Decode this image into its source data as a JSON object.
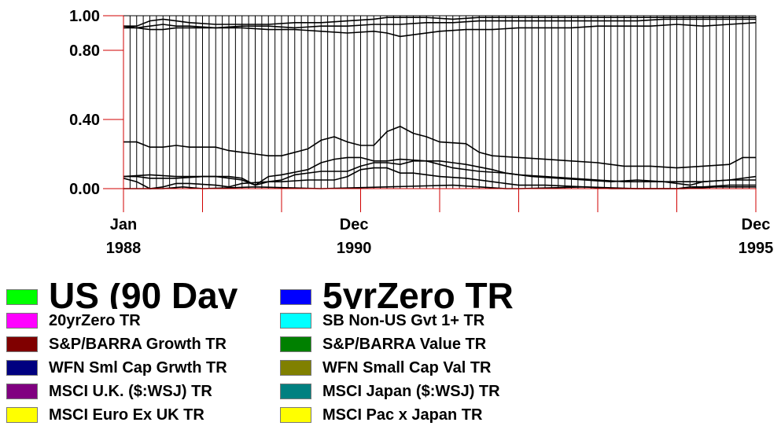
{
  "chart_data": {
    "type": "area",
    "stacked": true,
    "x": [
      "Jan 1988",
      "Dec 1990",
      "Dec 1995"
    ],
    "x_tick_labels": [
      {
        "line1": "Jan",
        "line2": "1988"
      },
      {
        "line1": "Dec",
        "line2": "1990"
      },
      {
        "line1": "Dec",
        "line2": "1995"
      }
    ],
    "y_tick_labels": [
      "1.00",
      "0.80",
      "0.40",
      "0.00"
    ],
    "y_ticks": [
      1.0,
      0.8,
      0.4,
      0.0
    ],
    "ylim": [
      0,
      1
    ],
    "xlim_months": 96,
    "vertical_gridlines": "monthly",
    "boundaries": [
      {
        "name": "b1",
        "points": [
          [
            0,
            0.0
          ],
          [
            6,
            0.0
          ],
          [
            9,
            0.01
          ],
          [
            12,
            0.0
          ],
          [
            20,
            0.01
          ],
          [
            30,
            0.0
          ],
          [
            40,
            0.01
          ],
          [
            50,
            0.02
          ],
          [
            58,
            0.0
          ],
          [
            60,
            0.0
          ],
          [
            70,
            0.01
          ],
          [
            78,
            0.0
          ],
          [
            85,
            0.0
          ],
          [
            90,
            0.01
          ],
          [
            96,
            0.01
          ]
        ]
      },
      {
        "name": "b2",
        "points": [
          [
            0,
            0.06
          ],
          [
            2,
            0.04
          ],
          [
            4,
            0.0
          ],
          [
            6,
            0.01
          ],
          [
            8,
            0.03
          ],
          [
            10,
            0.03
          ],
          [
            14,
            0.02
          ],
          [
            16,
            0.01
          ],
          [
            18,
            0.03
          ],
          [
            22,
            0.04
          ],
          [
            24,
            0.04
          ],
          [
            28,
            0.05
          ],
          [
            32,
            0.05
          ],
          [
            34,
            0.07
          ],
          [
            36,
            0.11
          ],
          [
            38,
            0.12
          ],
          [
            40,
            0.12
          ],
          [
            42,
            0.09
          ],
          [
            44,
            0.09
          ],
          [
            48,
            0.07
          ],
          [
            52,
            0.06
          ],
          [
            56,
            0.04
          ],
          [
            58,
            0.03
          ],
          [
            60,
            0.02
          ],
          [
            64,
            0.02
          ],
          [
            70,
            0.01
          ],
          [
            74,
            0.0
          ],
          [
            80,
            0.0
          ],
          [
            84,
            0.0
          ],
          [
            86,
            0.01
          ],
          [
            88,
            0.01
          ],
          [
            92,
            0.02
          ],
          [
            96,
            0.02
          ]
        ]
      },
      {
        "name": "b3",
        "points": [
          [
            0,
            0.07
          ],
          [
            2,
            0.07
          ],
          [
            4,
            0.06
          ],
          [
            8,
            0.06
          ],
          [
            12,
            0.07
          ],
          [
            14,
            0.07
          ],
          [
            18,
            0.05
          ],
          [
            20,
            0.02
          ],
          [
            22,
            0.04
          ],
          [
            24,
            0.05
          ],
          [
            26,
            0.08
          ],
          [
            30,
            0.1
          ],
          [
            34,
            0.1
          ],
          [
            36,
            0.13
          ],
          [
            38,
            0.15
          ],
          [
            40,
            0.15
          ],
          [
            42,
            0.14
          ],
          [
            44,
            0.16
          ],
          [
            48,
            0.16
          ],
          [
            50,
            0.15
          ],
          [
            52,
            0.14
          ],
          [
            56,
            0.11
          ],
          [
            58,
            0.09
          ],
          [
            60,
            0.08
          ],
          [
            64,
            0.07
          ],
          [
            68,
            0.06
          ],
          [
            72,
            0.05
          ],
          [
            76,
            0.04
          ],
          [
            80,
            0.04
          ],
          [
            84,
            0.04
          ],
          [
            88,
            0.04
          ],
          [
            92,
            0.05
          ],
          [
            96,
            0.05
          ]
        ]
      },
      {
        "name": "b4",
        "points": [
          [
            0,
            0.07
          ],
          [
            4,
            0.08
          ],
          [
            8,
            0.07
          ],
          [
            12,
            0.07
          ],
          [
            16,
            0.07
          ],
          [
            18,
            0.06
          ],
          [
            20,
            0.02
          ],
          [
            22,
            0.07
          ],
          [
            24,
            0.08
          ],
          [
            28,
            0.11
          ],
          [
            30,
            0.15
          ],
          [
            32,
            0.17
          ],
          [
            34,
            0.18
          ],
          [
            36,
            0.18
          ],
          [
            38,
            0.16
          ],
          [
            40,
            0.16
          ],
          [
            42,
            0.17
          ],
          [
            46,
            0.16
          ],
          [
            50,
            0.12
          ],
          [
            54,
            0.1
          ],
          [
            58,
            0.09
          ],
          [
            62,
            0.07
          ],
          [
            66,
            0.06
          ],
          [
            70,
            0.05
          ],
          [
            74,
            0.04
          ],
          [
            78,
            0.05
          ],
          [
            82,
            0.04
          ],
          [
            86,
            0.02
          ],
          [
            88,
            0.04
          ],
          [
            92,
            0.05
          ],
          [
            96,
            0.07
          ]
        ]
      },
      {
        "name": "b5",
        "points": [
          [
            0,
            0.27
          ],
          [
            2,
            0.27
          ],
          [
            4,
            0.24
          ],
          [
            6,
            0.24
          ],
          [
            8,
            0.25
          ],
          [
            10,
            0.24
          ],
          [
            14,
            0.24
          ],
          [
            16,
            0.22
          ],
          [
            18,
            0.21
          ],
          [
            20,
            0.2
          ],
          [
            22,
            0.19
          ],
          [
            24,
            0.19
          ],
          [
            26,
            0.21
          ],
          [
            28,
            0.23
          ],
          [
            30,
            0.28
          ],
          [
            32,
            0.3
          ],
          [
            34,
            0.27
          ],
          [
            36,
            0.25
          ],
          [
            38,
            0.25
          ],
          [
            40,
            0.33
          ],
          [
            42,
            0.36
          ],
          [
            44,
            0.32
          ],
          [
            46,
            0.3
          ],
          [
            48,
            0.27
          ],
          [
            52,
            0.26
          ],
          [
            54,
            0.21
          ],
          [
            56,
            0.19
          ],
          [
            60,
            0.18
          ],
          [
            64,
            0.17
          ],
          [
            68,
            0.16
          ],
          [
            72,
            0.15
          ],
          [
            76,
            0.13
          ],
          [
            80,
            0.13
          ],
          [
            84,
            0.12
          ],
          [
            88,
            0.13
          ],
          [
            92,
            0.14
          ],
          [
            94,
            0.18
          ],
          [
            96,
            0.18
          ]
        ]
      },
      {
        "name": "b6",
        "points": [
          [
            0,
            0.93
          ],
          [
            2,
            0.93
          ],
          [
            4,
            0.92
          ],
          [
            6,
            0.92
          ],
          [
            8,
            0.93
          ],
          [
            10,
            0.93
          ],
          [
            14,
            0.93
          ],
          [
            18,
            0.93
          ],
          [
            22,
            0.92
          ],
          [
            26,
            0.92
          ],
          [
            30,
            0.91
          ],
          [
            34,
            0.9
          ],
          [
            38,
            0.91
          ],
          [
            40,
            0.9
          ],
          [
            42,
            0.88
          ],
          [
            44,
            0.89
          ],
          [
            48,
            0.91
          ],
          [
            52,
            0.92
          ],
          [
            56,
            0.92
          ],
          [
            60,
            0.93
          ],
          [
            64,
            0.93
          ],
          [
            68,
            0.93
          ],
          [
            72,
            0.94
          ],
          [
            76,
            0.94
          ],
          [
            80,
            0.94
          ],
          [
            84,
            0.95
          ],
          [
            88,
            0.94
          ],
          [
            92,
            0.95
          ],
          [
            96,
            0.96
          ]
        ]
      },
      {
        "name": "b7",
        "points": [
          [
            0,
            0.94
          ],
          [
            2,
            0.93
          ],
          [
            4,
            0.94
          ],
          [
            6,
            0.95
          ],
          [
            8,
            0.94
          ],
          [
            10,
            0.94
          ],
          [
            14,
            0.93
          ],
          [
            18,
            0.94
          ],
          [
            22,
            0.94
          ],
          [
            26,
            0.93
          ],
          [
            30,
            0.94
          ],
          [
            34,
            0.94
          ],
          [
            38,
            0.95
          ],
          [
            40,
            0.95
          ],
          [
            42,
            0.95
          ],
          [
            46,
            0.96
          ],
          [
            50,
            0.96
          ],
          [
            54,
            0.97
          ],
          [
            58,
            0.97
          ],
          [
            62,
            0.97
          ],
          [
            66,
            0.97
          ],
          [
            70,
            0.97
          ],
          [
            74,
            0.97
          ],
          [
            78,
            0.97
          ],
          [
            82,
            0.98
          ],
          [
            86,
            0.98
          ],
          [
            90,
            0.98
          ],
          [
            94,
            0.98
          ],
          [
            96,
            0.98
          ]
        ]
      },
      {
        "name": "b8",
        "points": [
          [
            0,
            0.94
          ],
          [
            2,
            0.94
          ],
          [
            4,
            0.97
          ],
          [
            6,
            0.98
          ],
          [
            8,
            0.97
          ],
          [
            10,
            0.96
          ],
          [
            14,
            0.95
          ],
          [
            18,
            0.95
          ],
          [
            22,
            0.95
          ],
          [
            26,
            0.96
          ],
          [
            30,
            0.96
          ],
          [
            34,
            0.97
          ],
          [
            38,
            0.98
          ],
          [
            40,
            0.99
          ],
          [
            42,
            0.99
          ],
          [
            46,
            0.99
          ],
          [
            50,
            0.98
          ],
          [
            54,
            0.99
          ],
          [
            58,
            0.99
          ],
          [
            62,
            0.99
          ],
          [
            66,
            0.99
          ],
          [
            70,
            0.99
          ],
          [
            74,
            0.99
          ],
          [
            78,
            0.99
          ],
          [
            82,
            0.99
          ],
          [
            86,
            0.99
          ],
          [
            90,
            0.99
          ],
          [
            94,
            0.99
          ],
          [
            96,
            0.99
          ]
        ]
      }
    ],
    "legend": [
      {
        "label": "US (90 Day",
        "color": "#00ff00",
        "size": "large"
      },
      {
        "label": "5yrZero TR",
        "color": "#0000ff",
        "size": "large"
      },
      {
        "label": "20yrZero TR",
        "color": "#ff00ff"
      },
      {
        "label": "SB Non-US Gvt 1+ TR",
        "color": "#00ffff"
      },
      {
        "label": "S&P/BARRA Growth TR",
        "color": "#800000"
      },
      {
        "label": "S&P/BARRA Value TR",
        "color": "#008000"
      },
      {
        "label": "WFN Sml Cap Grwth TR",
        "color": "#000080"
      },
      {
        "label": "WFN Small Cap Val TR",
        "color": "#808000"
      },
      {
        "label": "MSCI U.K. ($:WSJ) TR",
        "color": "#800080"
      },
      {
        "label": "MSCI Japan ($:WSJ) TR",
        "color": "#008080"
      },
      {
        "label": "MSCI Euro Ex UK TR",
        "color": "#ffff00"
      },
      {
        "label": "MSCI Pac x Japan TR",
        "color": "#ffff00"
      }
    ]
  }
}
